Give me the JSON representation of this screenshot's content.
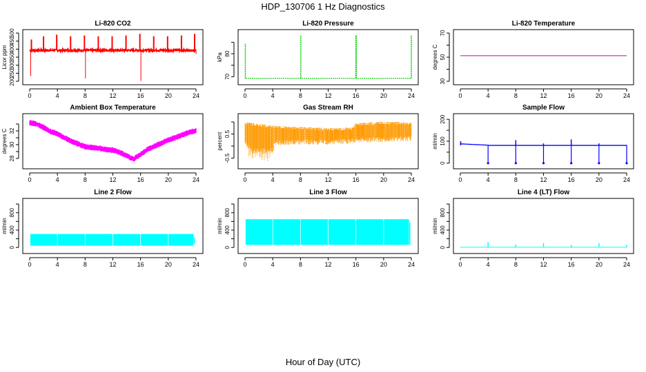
{
  "figure": {
    "title": "HDP_130706  1 Hz Diagnostics",
    "xlabel": "Hour of Day (UTC)"
  },
  "chart_data": [
    {
      "id": "co2",
      "type": "line",
      "title": "Li-820 CO2",
      "ylabel": "Licor ppm",
      "color": "#ff0000",
      "xlim": [
        0,
        24
      ],
      "ylim": [
        200,
        500
      ],
      "yticks": [
        200,
        250,
        300,
        350,
        400,
        450,
        500
      ],
      "xticks": [
        0,
        4,
        8,
        12,
        16,
        20,
        24
      ],
      "baseline": 393,
      "noise": 6,
      "segments": [
        [
          0.1,
          290,
          388
        ],
        [
          2.1,
          375,
          408
        ],
        [
          3.4,
          385,
          408
        ],
        [
          7.8,
          382,
          405
        ],
        [
          15.1,
          382,
          410
        ],
        [
          23.1,
          385,
          405
        ],
        [
          24,
          385,
          405
        ]
      ],
      "spikes": [
        [
          0.25,
          460
        ],
        [
          2.0,
          480
        ],
        [
          3.9,
          490
        ],
        [
          5.9,
          480
        ],
        [
          7.9,
          485
        ],
        [
          9.9,
          480
        ],
        [
          11.9,
          480
        ],
        [
          13.9,
          485
        ],
        [
          15.9,
          495
        ],
        [
          17.9,
          480
        ],
        [
          19.9,
          480
        ],
        [
          21.9,
          485
        ],
        [
          23.8,
          495
        ]
      ],
      "dips": [
        [
          0.15,
          232
        ],
        [
          8.05,
          218
        ],
        [
          16.05,
          202
        ],
        [
          24,
          370
        ]
      ]
    },
    {
      "id": "pressure",
      "type": "line",
      "title": "Li-820 Pressure",
      "ylabel": "kPa",
      "color": "#00cc00",
      "xlim": [
        0,
        24
      ],
      "ylim": [
        68,
        89
      ],
      "yticks": [
        70,
        75,
        80,
        85
      ],
      "yticklabels_shown": [
        70,
        80
      ],
      "xticks": [
        0,
        4,
        8,
        12,
        16,
        20,
        24
      ],
      "baseline": 69.3,
      "spikes": [
        [
          0.05,
          84.5
        ],
        [
          8.05,
          88
        ],
        [
          16.0,
          88
        ],
        [
          16.05,
          88
        ],
        [
          24.0,
          88
        ]
      ]
    },
    {
      "id": "temp",
      "type": "line",
      "title": "Li-820 Temperature",
      "ylabel": "degrees C",
      "color": "#cc0099",
      "xlim": [
        0,
        24
      ],
      "ylim": [
        30,
        70
      ],
      "yticks": [
        30,
        40,
        50,
        60,
        70
      ],
      "yticklabels_shown": [
        30,
        50,
        70
      ],
      "xticks": [
        0,
        4,
        8,
        12,
        16,
        20,
        24
      ],
      "value": 51.2
    },
    {
      "id": "ambient",
      "type": "line",
      "title": "Ambient Box Temperature",
      "ylabel": "degrees C",
      "color": "#ff00ff",
      "xlim": [
        0,
        24
      ],
      "ylim": [
        27,
        34
      ],
      "yticks": [
        28,
        29,
        30,
        31,
        32,
        33
      ],
      "yticklabels_shown": [
        28,
        30,
        32
      ],
      "xticks": [
        0,
        4,
        8,
        12,
        16,
        20,
        24
      ],
      "x": [
        0,
        1,
        2,
        3,
        4,
        5,
        6,
        7,
        8,
        9,
        10,
        11,
        12,
        13,
        14,
        15,
        16,
        17,
        18,
        19,
        20,
        21,
        22,
        23,
        24
      ],
      "values": [
        33.2,
        33.0,
        32.5,
        31.9,
        31.6,
        31.0,
        30.5,
        30.1,
        29.7,
        29.6,
        29.5,
        29.3,
        29.2,
        28.9,
        28.4,
        27.9,
        28.6,
        29.3,
        29.8,
        30.2,
        30.7,
        31.0,
        31.4,
        31.8,
        32.0
      ],
      "band": 0.35
    },
    {
      "id": "rh",
      "type": "line",
      "title": "Gas Stream RH",
      "ylabel": "percent",
      "color": "#ff9900",
      "xlim": [
        0,
        24
      ],
      "ylim": [
        -0.8,
        1.2
      ],
      "yticks": [
        -0.5,
        0,
        0.5,
        1.0
      ],
      "yticklabels_shown": [
        -0.5,
        0.5
      ],
      "xticks": [
        0,
        4,
        8,
        12,
        16,
        20,
        24
      ],
      "upper": [
        [
          0,
          1.0
        ],
        [
          4,
          0.85
        ],
        [
          8,
          0.8
        ],
        [
          12,
          0.75
        ],
        [
          15.5,
          0.78
        ],
        [
          16,
          0.95
        ],
        [
          20,
          1.02
        ],
        [
          24,
          0.98
        ]
      ],
      "lower": [
        [
          0,
          0.05
        ],
        [
          1,
          -0.3
        ],
        [
          4,
          -0.35
        ],
        [
          4.2,
          0.0
        ],
        [
          8,
          0.05
        ],
        [
          12,
          0.05
        ],
        [
          15.5,
          0.08
        ],
        [
          16,
          0.15
        ],
        [
          20,
          0.15
        ],
        [
          24,
          0.2
        ]
      ]
    },
    {
      "id": "sample",
      "type": "line",
      "title": "Sample Flow",
      "ylabel": "ml/min",
      "color": "#0000ff",
      "xlim": [
        0,
        24
      ],
      "ylim": [
        -10,
        210
      ],
      "yticks": [
        0,
        50,
        100,
        150,
        200
      ],
      "yticklabels_shown": [
        0,
        100,
        200
      ],
      "xticks": [
        0,
        4,
        8,
        12,
        16,
        20,
        24
      ],
      "segments": [
        [
          0,
          88,
          82
        ],
        [
          4,
          82,
          80
        ],
        [
          24,
          82,
          80
        ]
      ],
      "band": 4,
      "spikes": [
        [
          0.05,
          100
        ],
        [
          8.0,
          105
        ],
        [
          12.0,
          90
        ],
        [
          16.0,
          108
        ],
        [
          20.0,
          90
        ]
      ],
      "dips": [
        [
          4.0,
          0
        ],
        [
          8.0,
          0
        ],
        [
          12.0,
          0
        ],
        [
          16.0,
          0
        ],
        [
          20.0,
          0
        ],
        [
          24.0,
          0
        ]
      ]
    },
    {
      "id": "line2",
      "type": "band",
      "title": "Line 2 Flow",
      "ylabel": "ml/min",
      "color": "#00ffff",
      "xlim": [
        0,
        24
      ],
      "ylim": [
        -60,
        1050
      ],
      "yticks": [
        0,
        200,
        400,
        600,
        800,
        1000
      ],
      "yticklabels_shown": [
        0,
        400,
        800
      ],
      "xticks": [
        0,
        4,
        8,
        12,
        16,
        20,
        24
      ],
      "low": 40,
      "high": 310,
      "gaps": [
        4,
        8,
        12,
        16,
        20
      ],
      "tail_low": 80,
      "tail_high": 220
    },
    {
      "id": "line3",
      "type": "band",
      "title": "Line 3 Flow",
      "ylabel": "ml/min",
      "color": "#00ffff",
      "xlim": [
        0,
        24
      ],
      "ylim": [
        -60,
        1050
      ],
      "yticks": [
        0,
        200,
        400,
        600,
        800,
        1000
      ],
      "yticklabels_shown": [
        0,
        400,
        800
      ],
      "xticks": [
        0,
        4,
        8,
        12,
        16,
        20,
        24
      ],
      "low": 60,
      "high": 650,
      "gaps": [
        4,
        8,
        12,
        16,
        20
      ],
      "tail_low": 60,
      "tail_high": 580
    },
    {
      "id": "line4",
      "type": "line",
      "title": "Line 4 (LT) Flow",
      "ylabel": "ml/min",
      "color": "#00ffff",
      "xlim": [
        0,
        24
      ],
      "ylim": [
        -60,
        1050
      ],
      "yticks": [
        0,
        200,
        400,
        600,
        800,
        1000
      ],
      "yticklabels_shown": [
        0,
        400,
        800
      ],
      "xticks": [
        0,
        4,
        8,
        12,
        16,
        20,
        24
      ],
      "baseline": 5,
      "spikes": [
        [
          4.0,
          120
        ],
        [
          8.0,
          70
        ],
        [
          12.0,
          100
        ],
        [
          16.0,
          60
        ],
        [
          20.0,
          100
        ],
        [
          24.0,
          60
        ]
      ]
    }
  ]
}
